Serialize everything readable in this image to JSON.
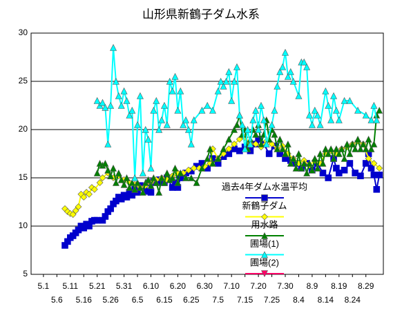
{
  "chart_data": {
    "type": "line",
    "title": "山形県新鶴子ダム水系",
    "xlim": [
      -4.6,
      126.5
    ],
    "xticks": [
      {
        "value": 0,
        "label": "5.1"
      },
      {
        "value": 5,
        "label": "5.6"
      },
      {
        "value": 10,
        "label": "5.11"
      },
      {
        "value": 15,
        "label": "5.16"
      },
      {
        "value": 20,
        "label": "5.21"
      },
      {
        "value": 25,
        "label": "5.26"
      },
      {
        "value": 30,
        "label": "5.31"
      },
      {
        "value": 35,
        "label": "6.5"
      },
      {
        "value": 40,
        "label": "6.10"
      },
      {
        "value": 45,
        "label": "6.15"
      },
      {
        "value": 50,
        "label": "6.20"
      },
      {
        "value": 55,
        "label": "6.25"
      },
      {
        "value": 60,
        "label": "6.30"
      },
      {
        "value": 65,
        "label": "7.5"
      },
      {
        "value": 70,
        "label": "7.10"
      },
      {
        "value": 75,
        "label": "7.15"
      },
      {
        "value": 80,
        "label": "7.20"
      },
      {
        "value": 85,
        "label": "7.25"
      },
      {
        "value": 90,
        "label": "7.30"
      },
      {
        "value": 95,
        "label": "8.4"
      },
      {
        "value": 100,
        "label": "8.9"
      },
      {
        "value": 105,
        "label": "8.14"
      },
      {
        "value": 110,
        "label": "8.19"
      },
      {
        "value": 115,
        "label": "8.24"
      },
      {
        "value": 120,
        "label": "8.29"
      }
    ],
    "ylim": [
      5,
      30
    ],
    "yticks": [
      5,
      10,
      15,
      20,
      25,
      30
    ],
    "grid": true,
    "series": [
      {
        "name": "過去4年ダム水温平均",
        "color": "#0000cc",
        "marker": "square",
        "x": [
          8,
          9,
          10,
          11,
          12,
          13,
          14,
          15,
          16,
          17,
          18,
          19,
          20,
          22,
          23,
          24,
          25,
          26,
          27,
          28,
          29,
          30,
          31,
          32,
          33,
          34,
          35,
          36,
          37,
          38,
          39,
          40,
          41,
          42,
          43,
          44,
          45,
          46,
          48,
          49,
          50,
          51,
          53,
          55,
          57,
          59,
          61,
          63,
          65,
          67,
          69,
          71,
          73,
          75,
          77,
          79,
          80,
          82,
          84,
          86,
          88,
          90,
          92,
          94,
          96,
          98,
          100,
          102,
          104,
          106,
          108,
          109,
          110,
          112,
          114,
          116,
          118,
          120,
          121,
          122,
          123,
          124,
          125
        ],
        "values": [
          8.0,
          8.4,
          8.8,
          9.0,
          9.3,
          9.6,
          10.0,
          9.8,
          10.2,
          10.0,
          10.5,
          10.6,
          10.6,
          10.6,
          11.0,
          11.5,
          11.8,
          12.3,
          12.6,
          13.0,
          12.8,
          13.2,
          13.0,
          13.5,
          13.2,
          13.8,
          13.5,
          14.2,
          14.0,
          13.6,
          14.5,
          13.5,
          14.6,
          14.5,
          14.8,
          14.6,
          14.5,
          15.0,
          14.0,
          14.5,
          14.0,
          15.0,
          15.5,
          15.7,
          16.2,
          16.5,
          16.0,
          17.0,
          16.5,
          17.2,
          17.5,
          18.0,
          17.8,
          18.2,
          17.8,
          18.5,
          19.0,
          18.5,
          17.5,
          18.3,
          17.5,
          17.0,
          16.8,
          16.5,
          16.0,
          16.5,
          15.8,
          16.5,
          15.5,
          15.0,
          17.0,
          16.0,
          15.5,
          15.8,
          16.5,
          15.5,
          15.2,
          16.5,
          17.5,
          16.0,
          15.3,
          13.8,
          15.3
        ]
      },
      {
        "name": "新鶴子ダム",
        "color": "#ffff00",
        "marker": "diamond",
        "x": [
          8,
          9,
          10,
          11,
          12,
          13,
          14,
          15,
          16,
          17,
          18,
          19,
          21,
          22,
          24,
          26,
          28,
          30,
          32,
          34,
          36,
          38,
          40,
          42,
          44,
          46,
          48,
          50,
          52,
          54,
          56,
          58,
          60,
          62,
          63,
          65,
          67,
          69,
          71,
          73,
          75,
          77,
          79,
          81,
          83,
          85,
          87,
          89,
          91,
          93,
          95,
          97,
          99,
          101,
          103,
          105,
          107,
          109,
          111,
          113,
          115,
          117,
          119,
          121,
          123,
          125
        ],
        "values": [
          11.8,
          11.5,
          11.3,
          11.2,
          11.6,
          12.0,
          13.3,
          13.0,
          13.5,
          13.3,
          14.0,
          13.8,
          14.5,
          15.0,
          15.5,
          15.0,
          15.2,
          14.8,
          14.5,
          14.3,
          14.0,
          14.2,
          14.5,
          14.8,
          15.0,
          14.8,
          15.2,
          15.5,
          15.5,
          15.8,
          16.0,
          16.0,
          16.2,
          16.5,
          18.0,
          17.0,
          17.5,
          18.0,
          18.5,
          19.0,
          19.2,
          18.5,
          18.5,
          18.2,
          18.8,
          18.5,
          18.0,
          18.3,
          17.5,
          17.0,
          16.5,
          16.8,
          16.3,
          16.8,
          16.5,
          17.5,
          17.8,
          17.5,
          18.0,
          18.2,
          18.5,
          18.8,
          18.5,
          17.0,
          16.5,
          16.0
        ]
      },
      {
        "name": "用水路",
        "color": "#008000",
        "marker": "triangle",
        "x": [
          20,
          21,
          22,
          23,
          24,
          25,
          26,
          27,
          28,
          29,
          30,
          31,
          32,
          33,
          34,
          35,
          36,
          37,
          38,
          39,
          40,
          41,
          42,
          43,
          44,
          45,
          46,
          47,
          48,
          49,
          50,
          51,
          53,
          55,
          57,
          59,
          61,
          62,
          63,
          65,
          67,
          69,
          71,
          72,
          73,
          74,
          75,
          76,
          77,
          78,
          79,
          80,
          81,
          82,
          83,
          84,
          85,
          86,
          87,
          88,
          89,
          90,
          91,
          92,
          93,
          94,
          95,
          96,
          97,
          98,
          99,
          100,
          101,
          102,
          103,
          104,
          105,
          106,
          107,
          108,
          109,
          110,
          111,
          112,
          113,
          114,
          115,
          116,
          117,
          118,
          119,
          120,
          121,
          122,
          123,
          124,
          125
        ],
        "values": [
          15.5,
          16.5,
          16.3,
          16.5,
          15.8,
          15.2,
          16.0,
          14.5,
          15.5,
          14.8,
          14.3,
          15.0,
          14.0,
          14.5,
          13.8,
          14.5,
          14.0,
          13.5,
          14.5,
          14.8,
          14.2,
          15.0,
          14.5,
          13.5,
          15.0,
          14.5,
          15.5,
          14.8,
          15.0,
          16.0,
          14.5,
          15.5,
          15.0,
          15.0,
          14.5,
          16.0,
          17.0,
          18.0,
          16.5,
          17.0,
          18.0,
          19.0,
          20.0,
          20.5,
          21.5,
          19.5,
          20.0,
          18.0,
          19.0,
          20.0,
          19.5,
          20.5,
          18.5,
          19.5,
          21.0,
          19.0,
          20.0,
          19.5,
          18.0,
          19.0,
          18.0,
          17.5,
          18.5,
          16.5,
          17.0,
          16.0,
          17.5,
          16.0,
          16.5,
          15.5,
          16.5,
          15.8,
          17.0,
          16.0,
          17.5,
          16.5,
          18.0,
          17.5,
          18.0,
          17.0,
          18.0,
          17.5,
          18.0,
          17.0,
          18.5,
          17.5,
          18.5,
          18.0,
          19.0,
          18.0,
          18.5,
          18.0,
          19.0,
          18.0,
          18.5,
          21.5,
          22.0
        ]
      },
      {
        "name": "圃場(1)",
        "color": "#00ffff",
        "marker": "triangle",
        "x": [
          20,
          21,
          22,
          23,
          24,
          25,
          26,
          27,
          28,
          29,
          30,
          31,
          32,
          33,
          34,
          35,
          36,
          37,
          38,
          39,
          40,
          41,
          42,
          43,
          44,
          45,
          46,
          47,
          48,
          49,
          50,
          51,
          52,
          53,
          54,
          55,
          56,
          59,
          61,
          63,
          65,
          66,
          67,
          68,
          69,
          70,
          71,
          72,
          73,
          74,
          75,
          76,
          77,
          78,
          79,
          80,
          81,
          82,
          83,
          85,
          86,
          87,
          88,
          89,
          90,
          91,
          92,
          93,
          95,
          96,
          97,
          98,
          99,
          100,
          101,
          102,
          103,
          105,
          106,
          107,
          108,
          109,
          110,
          112,
          114,
          117,
          120,
          122,
          123,
          124
        ],
        "values": [
          23.0,
          22.5,
          22.8,
          22.3,
          18.5,
          22.5,
          28.5,
          25.0,
          23.5,
          22.5,
          24.0,
          23.0,
          21.5,
          22.0,
          15.0,
          20.5,
          23.5,
          15.5,
          20.0,
          19.0,
          16.0,
          22.0,
          23.0,
          20.0,
          21.0,
          22.5,
          20.5,
          25.0,
          24.0,
          25.5,
          22.0,
          24.0,
          20.5,
          21.0,
          20.0,
          18.5,
          21.0,
          22.0,
          22.5,
          22.0,
          24.0,
          25.0,
          24.5,
          25.0,
          26.0,
          23.0,
          25.0,
          26.5,
          21.5,
          20.5,
          18.0,
          20.0,
          18.5,
          21.0,
          22.0,
          20.0,
          22.5,
          21.0,
          18.5,
          20.5,
          22.0,
          24.5,
          26.0,
          26.5,
          28.0,
          25.5,
          26.0,
          25.0,
          23.5,
          27.0,
          27.0,
          26.5,
          21.5,
          20.5,
          22.0,
          21.5,
          20.5,
          24.0,
          22.5,
          21.0,
          23.5,
          22.0,
          21.0,
          23.0,
          23.0,
          22.0,
          21.5,
          21.0,
          22.5,
          21.0
        ]
      },
      {
        "name": "圃場(2)",
        "color": "#ff0066",
        "marker": "triangle-down",
        "x": [],
        "values": []
      }
    ]
  }
}
